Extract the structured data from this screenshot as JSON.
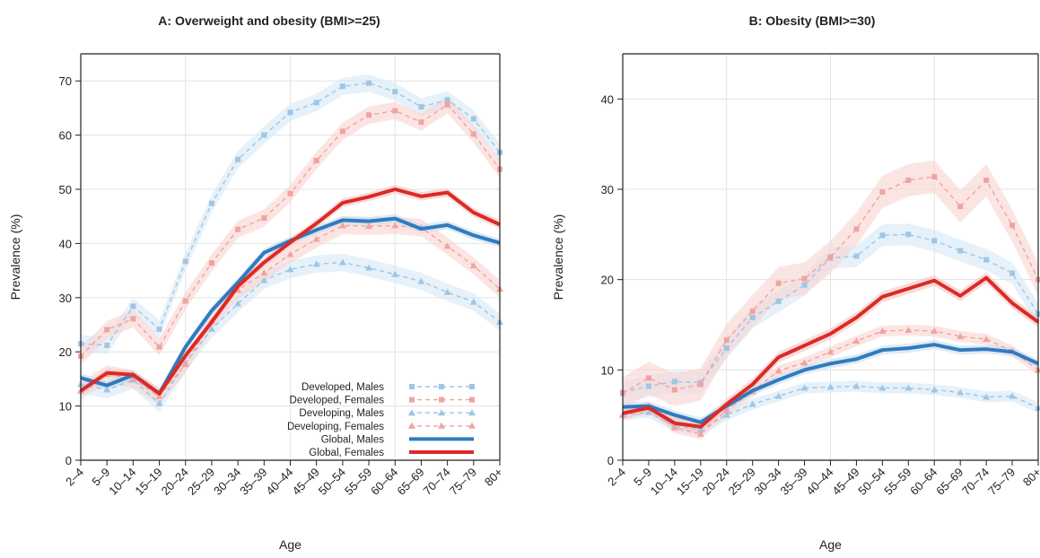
{
  "chart_data": [
    {
      "type": "line",
      "title": "A: Overweight and obesity (BMI>=25)",
      "xlabel": "Age",
      "ylabel": "Prevalence (%)",
      "categories": [
        "2–4",
        "5–9",
        "10–14",
        "15–19",
        "20–24",
        "25–29",
        "30–34",
        "35–39",
        "40–44",
        "45–49",
        "50–54",
        "55–59",
        "60–64",
        "65–69",
        "70–74",
        "75–79",
        "80+"
      ],
      "ylim": [
        0,
        75
      ],
      "yticks": [
        0,
        10,
        20,
        30,
        40,
        50,
        60,
        70
      ],
      "grid": true,
      "legend_position": "bottom-right",
      "series": [
        {
          "name": "Developed, Males",
          "values": [
            21.5,
            21.2,
            28.4,
            24.2,
            36.7,
            47.4,
            55.5,
            60.0,
            64.2,
            66.0,
            69.0,
            69.6,
            68.0,
            65.2,
            66.5,
            63.0,
            56.8
          ],
          "band": 1.6
        },
        {
          "name": "Developed, Females",
          "values": [
            19.2,
            24.1,
            26.1,
            20.9,
            29.4,
            36.4,
            42.6,
            44.7,
            49.2,
            55.3,
            60.7,
            63.7,
            64.5,
            62.4,
            65.6,
            60.2,
            53.7
          ],
          "band": 1.6
        },
        {
          "name": "Developing, Males",
          "values": [
            14.0,
            13.0,
            14.8,
            10.5,
            17.9,
            24.2,
            28.9,
            33.2,
            35.2,
            36.2,
            36.5,
            35.5,
            34.3,
            33.0,
            31.0,
            29.2,
            25.5
          ],
          "band": 1.6
        },
        {
          "name": "Developing, Females",
          "values": [
            12.8,
            15.9,
            15.0,
            11.8,
            17.7,
            25.7,
            31.4,
            34.6,
            38.0,
            40.8,
            43.3,
            43.2,
            43.3,
            42.9,
            39.5,
            35.9,
            31.6
          ],
          "band": 1.6
        },
        {
          "name": "Global, Males",
          "values": [
            15.2,
            13.8,
            15.7,
            12.3,
            20.9,
            27.6,
            32.8,
            38.3,
            40.5,
            42.5,
            44.3,
            44.1,
            44.6,
            42.7,
            43.4,
            41.5,
            40.1
          ],
          "band": 0.8
        },
        {
          "name": "Global, Females",
          "values": [
            12.8,
            16.1,
            15.8,
            12.3,
            19.3,
            25.5,
            32.1,
            36.5,
            40.2,
            43.7,
            47.5,
            48.6,
            50.0,
            48.7,
            49.4,
            45.7,
            43.5
          ],
          "band": 0.8
        }
      ]
    },
    {
      "type": "line",
      "title": "B: Obesity (BMI>=30)",
      "xlabel": "Age",
      "ylabel": "Prevalence (%)",
      "categories": [
        "2–4",
        "5–9",
        "10–14",
        "15–19",
        "20–24",
        "25–29",
        "30–34",
        "35–39",
        "40–44",
        "45–49",
        "50–54",
        "55–59",
        "60–64",
        "65–69",
        "70–74",
        "75–79",
        "80+"
      ],
      "ylim": [
        0,
        45
      ],
      "yticks": [
        0,
        10,
        20,
        30,
        40
      ],
      "grid": true,
      "series": [
        {
          "name": "Developed, Males",
          "values": [
            7.5,
            8.2,
            8.7,
            8.6,
            12.4,
            15.8,
            17.6,
            19.4,
            22.4,
            22.6,
            24.9,
            25.0,
            24.3,
            23.2,
            22.2,
            20.7,
            16.2
          ],
          "band": 1.2
        },
        {
          "name": "Developed, Females",
          "values": [
            7.4,
            9.1,
            7.8,
            8.4,
            13.3,
            16.5,
            19.6,
            20.1,
            22.5,
            25.6,
            29.7,
            31.0,
            31.4,
            28.1,
            31.0,
            26.0,
            20.0
          ],
          "band": 1.8
        },
        {
          "name": "Developing, Males",
          "values": [
            5.0,
            5.3,
            3.8,
            3.4,
            5.0,
            6.2,
            7.1,
            8.0,
            8.1,
            8.2,
            8.0,
            8.0,
            7.8,
            7.5,
            7.0,
            7.1,
            5.8
          ],
          "band": 0.6
        },
        {
          "name": "Developing, Females",
          "values": [
            5.0,
            5.9,
            3.6,
            2.9,
            5.5,
            7.6,
            9.9,
            10.8,
            12.0,
            13.2,
            14.3,
            14.4,
            14.3,
            13.7,
            13.4,
            12.1,
            10.0
          ],
          "band": 0.6
        },
        {
          "name": "Global, Males",
          "values": [
            5.9,
            6.0,
            5.0,
            4.2,
            6.0,
            7.7,
            8.9,
            10.0,
            10.7,
            11.2,
            12.2,
            12.4,
            12.8,
            12.2,
            12.3,
            12.0,
            10.7
          ],
          "band": 0.5
        },
        {
          "name": "Global, Females",
          "values": [
            5.2,
            5.8,
            4.1,
            3.7,
            6.2,
            8.4,
            11.4,
            12.7,
            14.0,
            15.8,
            18.1,
            19.0,
            19.9,
            18.2,
            20.2,
            17.4,
            15.3
          ],
          "band": 0.6
        }
      ]
    }
  ],
  "styles": {
    "Developed, Males": {
      "color": "#9ec6e6",
      "band": "#d6e7f5",
      "dash": true,
      "marker": "square"
    },
    "Developed, Females": {
      "color": "#f1a3a0",
      "band": "#f9d3d1",
      "dash": true,
      "marker": "square"
    },
    "Developing, Males": {
      "color": "#9ec6e6",
      "band": "#d6e7f5",
      "dash": true,
      "marker": "triangle"
    },
    "Developing, Females": {
      "color": "#f1a3a0",
      "band": "#f9d3d1",
      "dash": true,
      "marker": "triangle"
    },
    "Global, Males": {
      "color": "#2f7bbf",
      "band": "#c9dced",
      "dash": false,
      "marker": "none"
    },
    "Global, Females": {
      "color": "#dc2a26",
      "band": "#f4c4c2",
      "dash": false,
      "marker": "none"
    }
  }
}
